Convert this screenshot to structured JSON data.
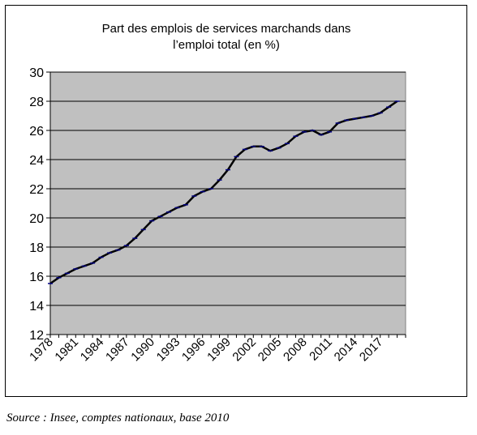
{
  "chart_data": {
    "type": "line",
    "title_lines": [
      "Part des emplois de services marchands dans",
      "l’emploi total (en %)"
    ],
    "xlabel": "",
    "ylabel": "",
    "ylim": [
      12,
      30
    ],
    "yticks": [
      12,
      14,
      16,
      18,
      20,
      22,
      24,
      26,
      28,
      30
    ],
    "xlim": [
      1978,
      2020
    ],
    "xticks": [
      1978,
      1981,
      1984,
      1987,
      1990,
      1993,
      1996,
      1999,
      2002,
      2005,
      2008,
      2011,
      2014,
      2017
    ],
    "grid": true,
    "plot_background": "#c0c0c0",
    "line_color": "#000000",
    "marker_color": "#000080",
    "series": [
      {
        "x": [
          1978,
          1979,
          1980,
          1981,
          1982,
          1983,
          1984,
          1985,
          1986,
          1987,
          1988,
          1989,
          1990,
          1991,
          1992,
          1993,
          1994,
          1995,
          1996,
          1997,
          1998,
          1999,
          2000,
          2001,
          2002,
          2003,
          2004,
          2005,
          2006,
          2007,
          2008,
          2009,
          2010,
          2011,
          2012,
          2013,
          2014,
          2015,
          2016,
          2017,
          2018,
          2019
        ],
        "values": [
          15.5,
          15.9,
          16.2,
          16.5,
          16.7,
          16.9,
          17.3,
          17.6,
          17.8,
          18.1,
          18.6,
          19.2,
          19.8,
          20.1,
          20.4,
          20.7,
          20.9,
          21.5,
          21.8,
          22.0,
          22.6,
          23.3,
          24.2,
          24.7,
          24.9,
          24.9,
          24.6,
          24.8,
          25.1,
          25.6,
          25.9,
          26.0,
          25.7,
          25.9,
          26.5,
          26.7,
          26.8,
          26.9,
          27.0,
          27.2,
          27.6,
          28.0
        ]
      }
    ]
  },
  "source": "Source : Insee, comptes nationaux, base 2010"
}
